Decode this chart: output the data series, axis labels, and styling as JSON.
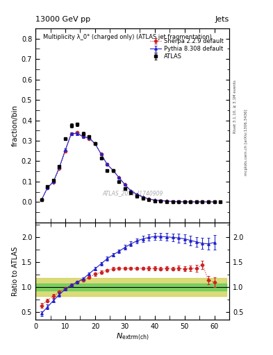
{
  "title_top": "13000 GeV pp",
  "title_right": "Jets",
  "main_title": "Multiplicity λ_0° (charged only) (ATLAS jet fragmentation)",
  "ylabel_main": "fraction/bin",
  "ylabel_ratio": "Ratio to ATLAS",
  "right_label_top": "Rivet 3.1.10, ≥ 3.1M events",
  "right_label_bottom": "mcplots.cern.ch [arXiv:1306.3436]",
  "watermark": "ATLAS_2019_I1740909",
  "atlas_x": [
    2,
    4,
    6,
    8,
    10,
    12,
    14,
    16,
    18,
    20,
    22,
    24,
    26,
    28,
    30,
    32,
    34,
    36,
    38,
    40,
    42,
    44,
    46,
    48,
    50,
    52,
    54,
    56,
    58,
    60,
    62
  ],
  "atlas_y": [
    0.01,
    0.075,
    0.105,
    0.175,
    0.31,
    0.375,
    0.38,
    0.335,
    0.32,
    0.285,
    0.215,
    0.155,
    0.155,
    0.1,
    0.065,
    0.045,
    0.03,
    0.018,
    0.01,
    0.006,
    0.005,
    0.003,
    0.002,
    0.002,
    0.001,
    0.001,
    0.001,
    0.001,
    0.001,
    0.001,
    0.0
  ],
  "atlas_yerr": [
    0.001,
    0.004,
    0.005,
    0.006,
    0.008,
    0.009,
    0.009,
    0.008,
    0.007,
    0.007,
    0.006,
    0.005,
    0.005,
    0.004,
    0.004,
    0.003,
    0.002,
    0.002,
    0.001,
    0.001,
    0.001,
    0.001,
    0.001,
    0.001,
    0.0005,
    0.0005,
    0.0005,
    0.0005,
    0.0005,
    0.0005,
    0.0
  ],
  "pythia_x": [
    2,
    4,
    6,
    8,
    10,
    12,
    14,
    16,
    18,
    20,
    22,
    24,
    26,
    28,
    30,
    32,
    34,
    36,
    38,
    40,
    42,
    44,
    46,
    48,
    50,
    52,
    54,
    56,
    58,
    60
  ],
  "pythia_y": [
    0.01,
    0.07,
    0.1,
    0.17,
    0.255,
    0.335,
    0.335,
    0.32,
    0.315,
    0.285,
    0.235,
    0.185,
    0.155,
    0.12,
    0.085,
    0.055,
    0.038,
    0.025,
    0.015,
    0.01,
    0.007,
    0.005,
    0.003,
    0.002,
    0.001,
    0.001,
    0.001,
    0.001,
    0.001,
    0.001
  ],
  "pythia_yerr": [
    0.001,
    0.003,
    0.004,
    0.005,
    0.006,
    0.007,
    0.007,
    0.006,
    0.006,
    0.006,
    0.005,
    0.005,
    0.004,
    0.004,
    0.003,
    0.003,
    0.002,
    0.002,
    0.001,
    0.001,
    0.001,
    0.001,
    0.001,
    0.0005,
    0.0005,
    0.0005,
    0.0005,
    0.0005,
    0.0005,
    0.0005
  ],
  "sherpa_x": [
    2,
    4,
    6,
    8,
    10,
    12,
    14,
    16,
    18,
    20,
    22,
    24,
    26,
    28,
    30,
    32,
    34,
    36,
    38,
    40,
    42,
    44,
    46,
    48,
    50,
    52,
    54,
    56,
    58,
    60
  ],
  "sherpa_y": [
    0.01,
    0.068,
    0.097,
    0.165,
    0.25,
    0.335,
    0.34,
    0.32,
    0.31,
    0.285,
    0.235,
    0.185,
    0.155,
    0.12,
    0.085,
    0.053,
    0.036,
    0.023,
    0.014,
    0.009,
    0.006,
    0.004,
    0.003,
    0.002,
    0.001,
    0.001,
    0.001,
    0.001,
    0.001,
    0.001
  ],
  "sherpa_yerr": [
    0.001,
    0.003,
    0.004,
    0.005,
    0.006,
    0.007,
    0.007,
    0.006,
    0.006,
    0.006,
    0.005,
    0.005,
    0.004,
    0.004,
    0.003,
    0.003,
    0.002,
    0.002,
    0.001,
    0.001,
    0.001,
    0.001,
    0.001,
    0.0005,
    0.0005,
    0.0005,
    0.0005,
    0.0005,
    0.0005,
    0.0005
  ],
  "ratio_pythia_x": [
    2,
    4,
    6,
    8,
    10,
    12,
    14,
    16,
    18,
    20,
    22,
    24,
    26,
    28,
    30,
    32,
    34,
    36,
    38,
    40,
    42,
    44,
    46,
    48,
    50,
    52,
    54,
    56,
    58,
    60
  ],
  "ratio_pythia_y": [
    0.47,
    0.6,
    0.73,
    0.85,
    0.96,
    1.04,
    1.1,
    1.17,
    1.27,
    1.37,
    1.47,
    1.57,
    1.65,
    1.72,
    1.8,
    1.87,
    1.93,
    1.97,
    2.0,
    2.02,
    2.02,
    2.01,
    2.0,
    1.99,
    1.97,
    1.94,
    1.91,
    1.88,
    1.87,
    1.9
  ],
  "ratio_pythia_yerr": [
    0.05,
    0.05,
    0.04,
    0.04,
    0.03,
    0.03,
    0.03,
    0.03,
    0.03,
    0.03,
    0.03,
    0.04,
    0.04,
    0.04,
    0.05,
    0.05,
    0.05,
    0.06,
    0.06,
    0.07,
    0.07,
    0.08,
    0.08,
    0.09,
    0.09,
    0.1,
    0.1,
    0.11,
    0.12,
    0.15
  ],
  "ratio_sherpa_x": [
    2,
    4,
    6,
    8,
    10,
    12,
    14,
    16,
    18,
    20,
    22,
    24,
    26,
    28,
    30,
    32,
    34,
    36,
    38,
    40,
    42,
    44,
    46,
    48,
    50,
    52,
    54,
    56,
    58,
    60
  ],
  "ratio_sherpa_y": [
    0.63,
    0.73,
    0.82,
    0.9,
    0.97,
    1.04,
    1.1,
    1.14,
    1.2,
    1.26,
    1.3,
    1.34,
    1.37,
    1.38,
    1.38,
    1.38,
    1.38,
    1.38,
    1.38,
    1.38,
    1.37,
    1.38,
    1.37,
    1.38,
    1.37,
    1.38,
    1.38,
    1.45,
    1.14,
    1.1
  ],
  "ratio_sherpa_yerr": [
    0.05,
    0.04,
    0.04,
    0.03,
    0.03,
    0.03,
    0.03,
    0.03,
    0.03,
    0.03,
    0.03,
    0.03,
    0.03,
    0.03,
    0.03,
    0.03,
    0.03,
    0.03,
    0.04,
    0.04,
    0.04,
    0.04,
    0.04,
    0.05,
    0.05,
    0.06,
    0.07,
    0.08,
    0.08,
    0.1
  ],
  "band_x": [
    0,
    4,
    8,
    12,
    16,
    20,
    24,
    28,
    32,
    36,
    40,
    44,
    48,
    52,
    56,
    60,
    64
  ],
  "band_green_lo": [
    0.93,
    0.93,
    0.93,
    0.93,
    0.93,
    0.93,
    0.93,
    0.93,
    0.93,
    0.93,
    0.93,
    0.93,
    0.93,
    0.93,
    0.93,
    0.93,
    0.93
  ],
  "band_green_hi": [
    1.07,
    1.07,
    1.07,
    1.07,
    1.07,
    1.07,
    1.07,
    1.07,
    1.07,
    1.07,
    1.07,
    1.07,
    1.07,
    1.07,
    1.07,
    1.07,
    1.07
  ],
  "band_yellow_lo": [
    0.82,
    0.82,
    0.82,
    0.82,
    0.82,
    0.82,
    0.82,
    0.82,
    0.82,
    0.82,
    0.82,
    0.82,
    0.82,
    0.82,
    0.82,
    0.82,
    0.82
  ],
  "band_yellow_hi": [
    1.18,
    1.18,
    1.18,
    1.18,
    1.18,
    1.18,
    1.18,
    1.18,
    1.18,
    1.18,
    1.18,
    1.18,
    1.18,
    1.18,
    1.18,
    1.18,
    1.18
  ],
  "colors": {
    "atlas": "#000000",
    "pythia": "#2222cc",
    "sherpa": "#cc2222",
    "band_green": "#55cc55",
    "band_yellow": "#cccc44"
  },
  "xlim": [
    0,
    65
  ],
  "ylim_main": [
    -0.1,
    0.85
  ],
  "ylim_ratio": [
    0.35,
    2.3
  ],
  "yticks_main": [
    0.0,
    0.1,
    0.2,
    0.3,
    0.4,
    0.5,
    0.6,
    0.7,
    0.8
  ],
  "yticks_ratio": [
    0.5,
    1.0,
    1.5,
    2.0
  ],
  "xticks": [
    0,
    10,
    20,
    30,
    40,
    50,
    60
  ]
}
